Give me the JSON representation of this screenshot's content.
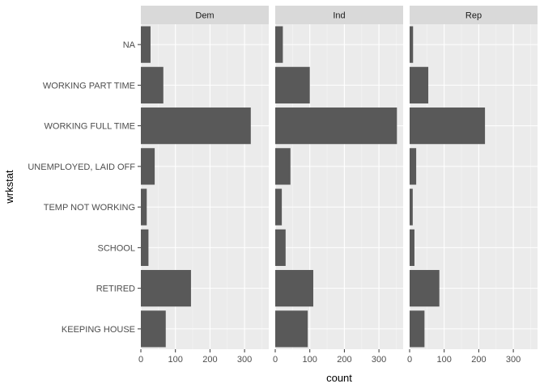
{
  "chart_data": {
    "type": "bar",
    "orientation": "horizontal",
    "facet_by": "party",
    "xlabel": "count",
    "ylabel": "wrkstat",
    "xlim": [
      0,
      370
    ],
    "x_ticks": [
      0,
      100,
      200,
      300
    ],
    "grid": true,
    "categories": [
      "KEEPING HOUSE",
      "RETIRED",
      "SCHOOL",
      "TEMP NOT WORKING",
      "UNEMPLOYED, LAID OFF",
      "WORKING FULL TIME",
      "WORKING PART TIME",
      "NA"
    ],
    "panels": [
      {
        "label": "Dem",
        "values": [
          72,
          145,
          22,
          17,
          40,
          318,
          65,
          28
        ]
      },
      {
        "label": "Ind",
        "values": [
          94,
          110,
          30,
          19,
          44,
          352,
          100,
          22
        ]
      },
      {
        "label": "Rep",
        "values": [
          43,
          86,
          14,
          9,
          19,
          218,
          54,
          10
        ]
      }
    ],
    "colors": {
      "bar": "#595959",
      "panel_bg": "#ebebeb",
      "strip_bg": "#d9d9d9",
      "grid_major": "#ffffff",
      "grid_minor": "#f5f5f5"
    }
  }
}
